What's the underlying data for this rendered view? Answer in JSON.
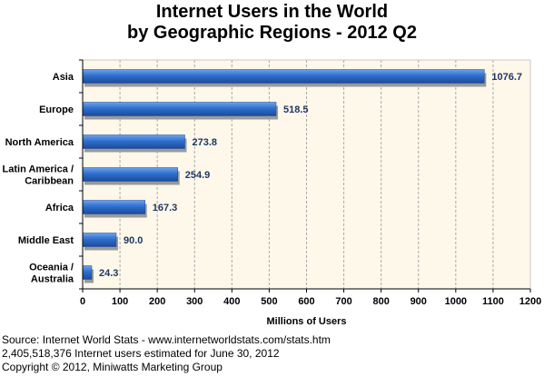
{
  "chart_data": {
    "type": "bar",
    "orientation": "horizontal",
    "title": "Internet Users in the World",
    "subtitle": "by Geographic Regions - 2012 Q2",
    "xlabel": "Millions of Users",
    "ylabel": "",
    "xlim": [
      0,
      1200
    ],
    "xticks": [
      0,
      100,
      200,
      300,
      400,
      500,
      600,
      700,
      800,
      900,
      1000,
      1100,
      1200
    ],
    "grid": "vertical",
    "colors": {
      "bar": "#2e6fcd",
      "bar_dark": "#1d4a9a",
      "bar_light": "#6fa2ee",
      "shadow": "#9a9a9a",
      "plot_bg": "#fdf8ea",
      "grid": "#aaaaaa",
      "label": "#1f3864"
    },
    "categories": [
      [
        "Asia"
      ],
      [
        "Europe"
      ],
      [
        "North America"
      ],
      [
        "Latin America /",
        "Caribbean"
      ],
      [
        "Africa"
      ],
      [
        "Middle East"
      ],
      [
        "Oceania  /",
        "Australia"
      ]
    ],
    "values": [
      1076.7,
      518.5,
      273.8,
      254.9,
      167.3,
      90.0,
      24.3
    ],
    "value_labels": [
      "1076.7",
      "518.5",
      "273.8",
      "254.9",
      "167.3",
      "90.0",
      "24.3"
    ]
  },
  "footer": {
    "source": "Source: Internet World Stats - www.internetworldstats.com/stats.htm",
    "estimate": "2,405,518,376 Internet users estimated for June 30, 2012",
    "copyright": "Copyright © 2012, Miniwatts Marketing Group"
  }
}
